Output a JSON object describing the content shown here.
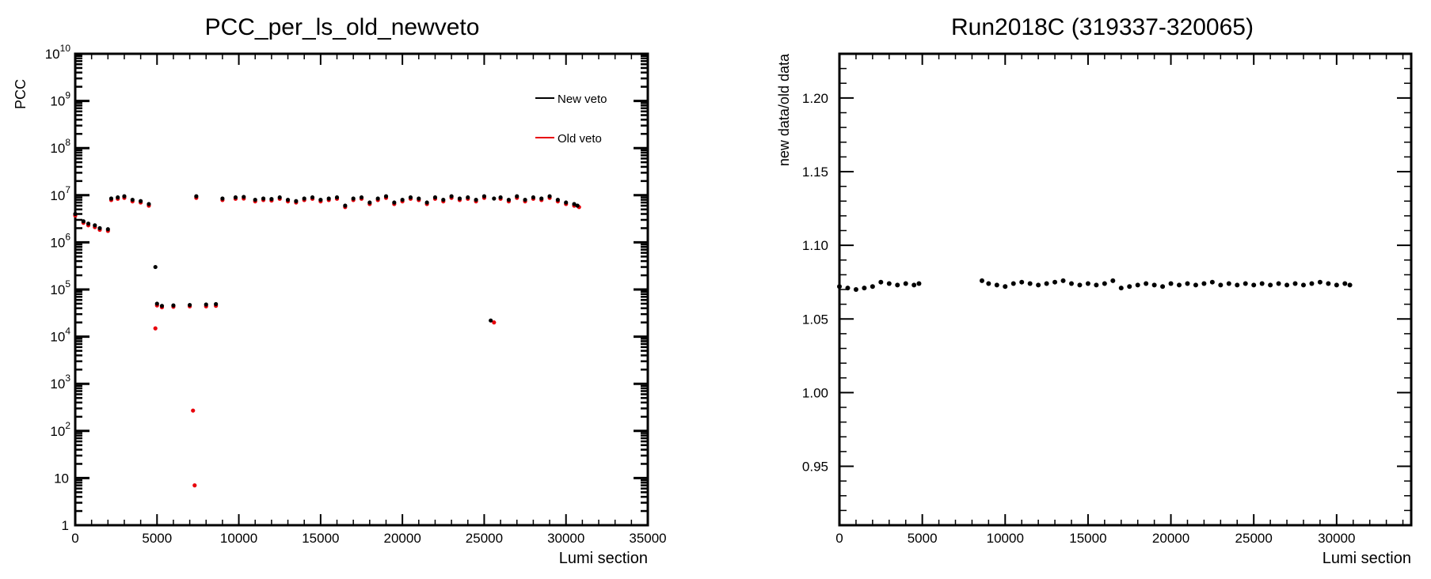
{
  "chart_data": [
    {
      "type": "scatter",
      "title": "PCC_per_ls_old_newveto",
      "xlabel": "Lumi section",
      "ylabel": "PCC",
      "xlim": [
        0,
        35000
      ],
      "ylim": [
        1,
        10000000000
      ],
      "yscale": "log",
      "xticks": [
        0,
        5000,
        10000,
        15000,
        20000,
        25000,
        30000,
        35000
      ],
      "xtick_labels": [
        "0",
        "5000",
        "10000",
        "15000",
        "20000",
        "25000",
        "30000",
        "35000"
      ],
      "ytick_labels": [
        {
          "base": "1",
          "exp": ""
        },
        {
          "base": "10",
          "exp": ""
        },
        {
          "base": "10",
          "exp": "2"
        },
        {
          "base": "10",
          "exp": "3"
        },
        {
          "base": "10",
          "exp": "4"
        },
        {
          "base": "10",
          "exp": "5"
        },
        {
          "base": "10",
          "exp": "6"
        },
        {
          "base": "10",
          "exp": "7"
        },
        {
          "base": "10",
          "exp": "8"
        },
        {
          "base": "10",
          "exp": "9"
        },
        {
          "base": "10",
          "exp": "10"
        }
      ],
      "legend": {
        "position": "top-right",
        "entries": [
          {
            "label": "New veto",
            "color": "#000000"
          },
          {
            "label": "Old veto",
            "color": "#e8000b"
          }
        ]
      },
      "series": [
        {
          "name": "New veto",
          "color": "#000000",
          "x": [
            0,
            500,
            800,
            1200,
            1500,
            2000,
            2200,
            2600,
            3000,
            3500,
            4000,
            4500,
            4900,
            5000,
            5300,
            6000,
            7000,
            7400,
            8000,
            8600,
            9000,
            9800,
            10300,
            11000,
            11500,
            12000,
            12500,
            13000,
            13500,
            14000,
            14500,
            15000,
            15500,
            16000,
            16500,
            17000,
            17500,
            18000,
            18500,
            19000,
            19500,
            20000,
            20500,
            21000,
            21500,
            22000,
            22500,
            23000,
            23500,
            24000,
            24500,
            25000,
            25400,
            25600,
            26000,
            26500,
            27000,
            27500,
            28000,
            28500,
            29000,
            29500,
            30000,
            30500,
            30700
          ],
          "y": [
            4000000,
            2800000,
            2500000,
            2300000,
            2000000,
            1900000,
            8500000,
            9000000,
            9500000,
            8000000,
            7500000,
            6500000,
            300000,
            50000,
            45000,
            46000,
            47000,
            9500000,
            48000,
            49000,
            8500000,
            9000000,
            9200000,
            8000000,
            8500000,
            8300000,
            9000000,
            8000000,
            7500000,
            8500000,
            9000000,
            8000000,
            8500000,
            9000000,
            6000000,
            8500000,
            9000000,
            7000000,
            8500000,
            9500000,
            7000000,
            8000000,
            9000000,
            8500000,
            7000000,
            9000000,
            8000000,
            9500000,
            8500000,
            9000000,
            8000000,
            9500000,
            22000,
            8500000,
            9000000,
            8000000,
            9500000,
            8000000,
            9000000,
            8500000,
            9500000,
            8000000,
            7000000,
            6500000,
            6000000
          ]
        },
        {
          "name": "Old veto",
          "color": "#e8000b",
          "x": [
            0,
            500,
            800,
            1200,
            1500,
            2000,
            2200,
            2600,
            3000,
            3500,
            4000,
            4500,
            4900,
            5000,
            5300,
            6000,
            7000,
            7200,
            7300,
            7400,
            8000,
            8600,
            9000,
            9800,
            10300,
            11000,
            11500,
            12000,
            12500,
            13000,
            13500,
            14000,
            14500,
            15000,
            15500,
            16000,
            16500,
            17000,
            17500,
            18000,
            18500,
            19000,
            19500,
            20000,
            20500,
            21000,
            21500,
            22000,
            22500,
            23000,
            23500,
            24000,
            24500,
            25000,
            25600,
            26000,
            26500,
            27000,
            27500,
            28000,
            28500,
            29000,
            29500,
            30000,
            30500,
            30800
          ],
          "y": [
            3700000,
            2600000,
            2300000,
            2100000,
            1850000,
            1750000,
            7900000,
            8400000,
            8800000,
            7400000,
            7000000,
            6000000,
            15000,
            46000,
            42000,
            43000,
            44000,
            270,
            7,
            8800000,
            44000,
            45000,
            7900000,
            8400000,
            8500000,
            7400000,
            7900000,
            7700000,
            8400000,
            7400000,
            7000000,
            7900000,
            8400000,
            7400000,
            7900000,
            8400000,
            5600000,
            7900000,
            8400000,
            6500000,
            7900000,
            8800000,
            6500000,
            7400000,
            8400000,
            7900000,
            6500000,
            8400000,
            7400000,
            8800000,
            7900000,
            8400000,
            7400000,
            8800000,
            20000,
            8400000,
            7400000,
            8800000,
            7400000,
            8400000,
            7900000,
            8800000,
            7400000,
            6500000,
            6000000,
            5600000
          ]
        }
      ]
    },
    {
      "type": "scatter",
      "title": "Run2018C (319337-320065)",
      "xlabel": "Lumi section",
      "ylabel": "new data/old data",
      "xlim": [
        0,
        34500
      ],
      "ylim": [
        0.91,
        1.23
      ],
      "xticks": [
        0,
        5000,
        10000,
        15000,
        20000,
        25000,
        30000
      ],
      "xtick_labels": [
        "0",
        "5000",
        "10000",
        "15000",
        "20000",
        "25000",
        "30000"
      ],
      "yticks": [
        0.95,
        1.0,
        1.05,
        1.1,
        1.15,
        1.2
      ],
      "ytick_labels": [
        "0.95",
        "1.00",
        "1.05",
        "1.10",
        "1.15",
        "1.20"
      ],
      "series": [
        {
          "name": "",
          "color": "#000000",
          "x": [
            0,
            500,
            1000,
            1500,
            2000,
            2500,
            3000,
            3500,
            4000,
            4500,
            4800,
            8600,
            9000,
            9500,
            10000,
            10500,
            11000,
            11500,
            12000,
            12500,
            13000,
            13500,
            14000,
            14500,
            15000,
            15500,
            16000,
            16500,
            17000,
            17500,
            18000,
            18500,
            19000,
            19500,
            20000,
            20500,
            21000,
            21500,
            22000,
            22500,
            23000,
            23500,
            24000,
            24500,
            25000,
            25500,
            26000,
            26500,
            27000,
            27500,
            28000,
            28500,
            29000,
            29500,
            30000,
            30500,
            30800
          ],
          "y": [
            1.072,
            1.071,
            1.07,
            1.071,
            1.072,
            1.075,
            1.074,
            1.073,
            1.074,
            1.073,
            1.074,
            1.076,
            1.074,
            1.073,
            1.072,
            1.074,
            1.075,
            1.074,
            1.073,
            1.074,
            1.075,
            1.076,
            1.074,
            1.073,
            1.074,
            1.073,
            1.074,
            1.076,
            1.071,
            1.072,
            1.073,
            1.074,
            1.073,
            1.072,
            1.074,
            1.073,
            1.074,
            1.073,
            1.074,
            1.075,
            1.073,
            1.074,
            1.073,
            1.074,
            1.073,
            1.074,
            1.073,
            1.074,
            1.073,
            1.074,
            1.073,
            1.074,
            1.075,
            1.074,
            1.073,
            1.074,
            1.073
          ]
        }
      ]
    }
  ]
}
